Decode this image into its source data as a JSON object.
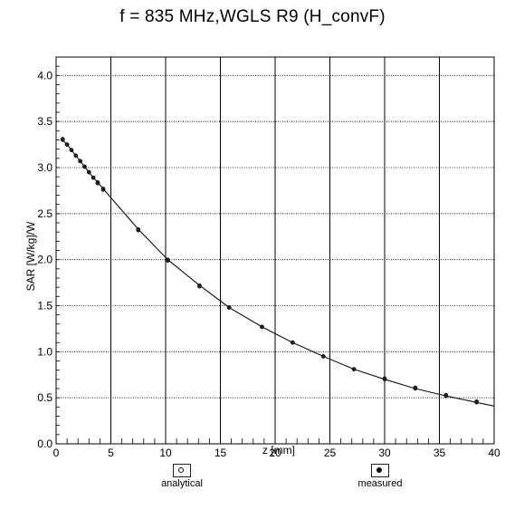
{
  "chart_data": {
    "type": "line",
    "title": "f = 835 MHz,WGLS R9 (H_convF)",
    "xlabel": "z [mm]",
    "ylabel": "SAR [W/kg]/W",
    "xlim": [
      0,
      40
    ],
    "ylim": [
      0,
      4.2
    ],
    "x_ticks": [
      "0",
      "5",
      "10",
      "15",
      "20",
      "25",
      "30",
      "35",
      "40"
    ],
    "y_ticks": [
      "0.0",
      "0.5",
      "1.0",
      "1.5",
      "2.0",
      "2.5",
      "3.0",
      "3.5",
      "4.0"
    ],
    "grid": true,
    "legend_position": "bottom",
    "series": [
      {
        "name": "analytical",
        "style": "line-open-markers",
        "x": [
          0.6,
          1.0,
          1.4,
          1.8,
          2.2,
          2.6,
          3.0,
          3.4,
          3.8,
          4.3,
          7.5,
          10.2,
          13.1,
          15.8,
          18.8,
          21.6,
          24.4,
          27.2,
          30.0,
          32.8,
          35.6,
          38.4,
          40.0
        ],
        "values": [
          3.3,
          3.25,
          3.19,
          3.13,
          3.07,
          3.01,
          2.95,
          2.89,
          2.84,
          2.77,
          2.33,
          2.0,
          1.72,
          1.48,
          1.27,
          1.1,
          0.95,
          0.81,
          0.7,
          0.6,
          0.52,
          0.45,
          0.41
        ]
      },
      {
        "name": "measured",
        "style": "filled-markers",
        "x": [
          0.6,
          1.0,
          1.4,
          1.8,
          2.2,
          2.6,
          3.0,
          3.4,
          3.8,
          4.3,
          7.5,
          10.2,
          13.1,
          15.8,
          18.8,
          21.6,
          24.4,
          27.2,
          30.0,
          32.8,
          35.6,
          38.4
        ],
        "values": [
          3.31,
          3.25,
          3.19,
          3.13,
          3.07,
          3.01,
          2.95,
          2.89,
          2.83,
          2.76,
          2.32,
          1.99,
          1.71,
          1.48,
          1.27,
          1.1,
          0.95,
          0.81,
          0.71,
          0.61,
          0.53,
          0.46
        ]
      }
    ]
  },
  "legend": {
    "analytical_label": "analytical",
    "measured_label": "measured"
  }
}
